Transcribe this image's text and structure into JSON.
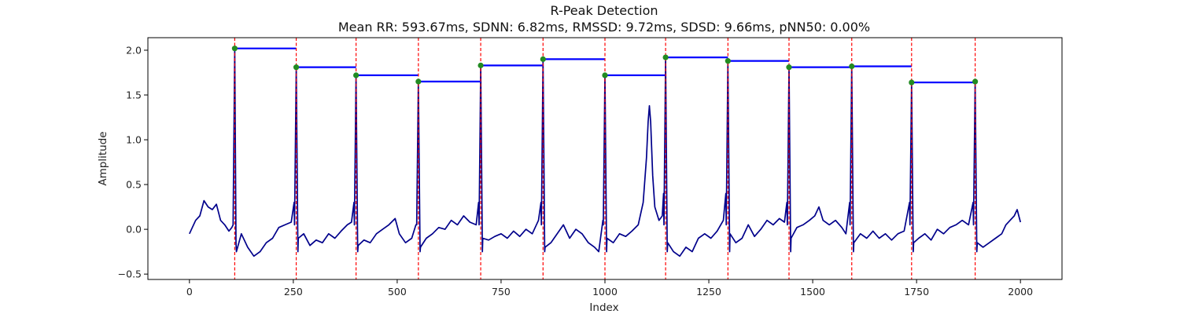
{
  "chart_data": {
    "type": "line",
    "title": "R-Peak Detection",
    "subtitle": "Mean RR: 593.67ms, SDNN: 6.82ms, RMSSD: 9.72ms, SDSD: 9.66ms, pNN50: 0.00%",
    "xlabel": "Index",
    "ylabel": "Amplitude",
    "xlim": [
      -100,
      2100
    ],
    "ylim": [
      -0.56,
      2.14
    ],
    "xticks": [
      0,
      250,
      500,
      750,
      1000,
      1250,
      1500,
      1750,
      2000
    ],
    "yticks": [
      -0.5,
      0.0,
      0.5,
      1.0,
      1.5,
      2.0
    ],
    "ytick_labels": [
      "−0.5",
      "0.0",
      "0.5",
      "1.0",
      "1.5",
      "2.0"
    ],
    "grid": false,
    "colors": {
      "signal": "#00008b",
      "peak_marker": "#228b22",
      "peak_line": "#ff0000",
      "rr_segment": "#0000ff"
    },
    "r_peaks": [
      {
        "x": 109,
        "y": 2.02
      },
      {
        "x": 257,
        "y": 1.81
      },
      {
        "x": 401,
        "y": 1.72
      },
      {
        "x": 551,
        "y": 1.65
      },
      {
        "x": 701,
        "y": 1.83
      },
      {
        "x": 851,
        "y": 1.9
      },
      {
        "x": 1000,
        "y": 1.72
      },
      {
        "x": 1146,
        "y": 1.92
      },
      {
        "x": 1296,
        "y": 1.88
      },
      {
        "x": 1443,
        "y": 1.81
      },
      {
        "x": 1594,
        "y": 1.82
      },
      {
        "x": 1738,
        "y": 1.64
      },
      {
        "x": 1891,
        "y": 1.65
      }
    ],
    "signal_baseline": [
      [
        0,
        -0.05
      ],
      [
        8,
        0.03
      ],
      [
        15,
        0.1
      ],
      [
        25,
        0.15
      ],
      [
        35,
        0.32
      ],
      [
        45,
        0.25
      ],
      [
        55,
        0.22
      ],
      [
        65,
        0.28
      ],
      [
        75,
        0.1
      ],
      [
        85,
        0.05
      ],
      [
        95,
        -0.02
      ],
      [
        102,
        0.02
      ],
      [
        112,
        -0.15
      ],
      [
        125,
        -0.05
      ],
      [
        140,
        -0.2
      ],
      [
        155,
        -0.3
      ],
      [
        170,
        -0.25
      ],
      [
        185,
        -0.15
      ],
      [
        200,
        -0.1
      ],
      [
        215,
        0.02
      ],
      [
        230,
        0.05
      ],
      [
        245,
        0.08
      ],
      [
        252,
        0.3
      ],
      [
        262,
        -0.1
      ],
      [
        275,
        -0.05
      ],
      [
        290,
        -0.18
      ],
      [
        305,
        -0.12
      ],
      [
        320,
        -0.15
      ],
      [
        335,
        -0.05
      ],
      [
        350,
        -0.1
      ],
      [
        365,
        -0.02
      ],
      [
        380,
        0.05
      ],
      [
        390,
        0.08
      ],
      [
        396,
        0.3
      ],
      [
        406,
        -0.18
      ],
      [
        420,
        -0.12
      ],
      [
        435,
        -0.15
      ],
      [
        450,
        -0.05
      ],
      [
        465,
        0.0
      ],
      [
        480,
        0.05
      ],
      [
        495,
        0.12
      ],
      [
        505,
        -0.05
      ],
      [
        520,
        -0.15
      ],
      [
        535,
        -0.1
      ],
      [
        545,
        0.05
      ],
      [
        556,
        -0.2
      ],
      [
        570,
        -0.1
      ],
      [
        585,
        -0.05
      ],
      [
        600,
        0.02
      ],
      [
        615,
        0.0
      ],
      [
        630,
        0.1
      ],
      [
        645,
        0.05
      ],
      [
        660,
        0.15
      ],
      [
        675,
        0.08
      ],
      [
        690,
        0.05
      ],
      [
        696,
        0.3
      ],
      [
        706,
        -0.1
      ],
      [
        720,
        -0.12
      ],
      [
        735,
        -0.08
      ],
      [
        750,
        -0.05
      ],
      [
        765,
        -0.1
      ],
      [
        780,
        -0.02
      ],
      [
        795,
        -0.08
      ],
      [
        810,
        0.0
      ],
      [
        825,
        -0.05
      ],
      [
        840,
        0.1
      ],
      [
        846,
        0.3
      ],
      [
        856,
        -0.2
      ],
      [
        870,
        -0.15
      ],
      [
        885,
        -0.05
      ],
      [
        900,
        0.05
      ],
      [
        915,
        -0.1
      ],
      [
        930,
        0.0
      ],
      [
        945,
        -0.05
      ],
      [
        960,
        -0.15
      ],
      [
        975,
        -0.2
      ],
      [
        985,
        -0.25
      ],
      [
        995,
        0.1
      ],
      [
        1005,
        -0.1
      ],
      [
        1020,
        -0.15
      ],
      [
        1035,
        -0.05
      ],
      [
        1050,
        -0.08
      ],
      [
        1065,
        -0.02
      ],
      [
        1080,
        0.05
      ],
      [
        1092,
        0.3
      ],
      [
        1100,
        0.8
      ],
      [
        1104,
        1.2
      ],
      [
        1107,
        1.38
      ],
      [
        1110,
        1.2
      ],
      [
        1115,
        0.6
      ],
      [
        1120,
        0.25
      ],
      [
        1130,
        0.1
      ],
      [
        1138,
        0.15
      ],
      [
        1141,
        0.4
      ],
      [
        1151,
        -0.15
      ],
      [
        1165,
        -0.25
      ],
      [
        1180,
        -0.3
      ],
      [
        1195,
        -0.2
      ],
      [
        1210,
        -0.25
      ],
      [
        1225,
        -0.1
      ],
      [
        1240,
        -0.05
      ],
      [
        1255,
        -0.1
      ],
      [
        1270,
        -0.02
      ],
      [
        1285,
        0.1
      ],
      [
        1291,
        0.4
      ],
      [
        1301,
        -0.05
      ],
      [
        1315,
        -0.15
      ],
      [
        1330,
        -0.1
      ],
      [
        1345,
        0.05
      ],
      [
        1360,
        -0.08
      ],
      [
        1375,
        0.0
      ],
      [
        1390,
        0.1
      ],
      [
        1405,
        0.05
      ],
      [
        1420,
        0.12
      ],
      [
        1432,
        0.08
      ],
      [
        1438,
        0.3
      ],
      [
        1448,
        -0.1
      ],
      [
        1462,
        0.02
      ],
      [
        1477,
        0.05
      ],
      [
        1492,
        0.1
      ],
      [
        1505,
        0.15
      ],
      [
        1515,
        0.25
      ],
      [
        1525,
        0.1
      ],
      [
        1540,
        0.05
      ],
      [
        1555,
        0.1
      ],
      [
        1570,
        0.02
      ],
      [
        1580,
        -0.05
      ],
      [
        1589,
        0.3
      ],
      [
        1599,
        -0.15
      ],
      [
        1615,
        -0.05
      ],
      [
        1630,
        -0.1
      ],
      [
        1645,
        -0.02
      ],
      [
        1660,
        -0.1
      ],
      [
        1675,
        -0.05
      ],
      [
        1690,
        -0.12
      ],
      [
        1705,
        -0.05
      ],
      [
        1720,
        -0.02
      ],
      [
        1733,
        0.3
      ],
      [
        1743,
        -0.15
      ],
      [
        1755,
        -0.1
      ],
      [
        1770,
        -0.05
      ],
      [
        1785,
        -0.12
      ],
      [
        1800,
        0.0
      ],
      [
        1815,
        -0.05
      ],
      [
        1830,
        0.02
      ],
      [
        1845,
        0.05
      ],
      [
        1860,
        0.1
      ],
      [
        1875,
        0.05
      ],
      [
        1886,
        0.3
      ],
      [
        1896,
        -0.15
      ],
      [
        1910,
        -0.2
      ],
      [
        1925,
        -0.15
      ],
      [
        1940,
        -0.1
      ],
      [
        1955,
        -0.05
      ],
      [
        1965,
        0.05
      ],
      [
        1975,
        0.1
      ],
      [
        1985,
        0.15
      ],
      [
        1992,
        0.22
      ],
      [
        2000,
        0.08
      ]
    ]
  }
}
